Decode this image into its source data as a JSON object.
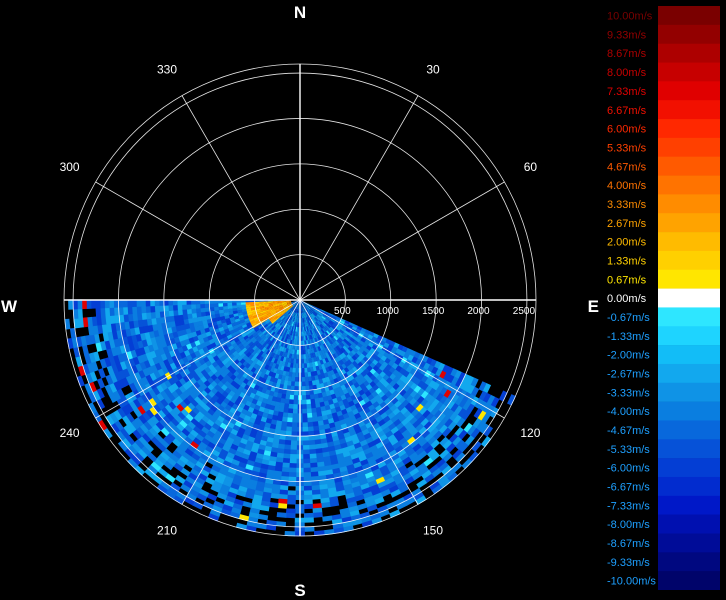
{
  "chart_data": {
    "type": "heatmap",
    "subtype": "polar-ppi-radial-velocity",
    "background": "#000000",
    "grid": true,
    "grid_color": "#ffffff",
    "range_ring_values": [
      500,
      1000,
      1500,
      2000,
      2500
    ],
    "range_tick_labels": [
      "500",
      "1000",
      "1500",
      "2000",
      "2500"
    ],
    "range_max": 2600,
    "compass_labels": {
      "north": "N",
      "east": "E",
      "south": "S",
      "west": "W"
    },
    "bearing_labels": [
      {
        "angle": 30,
        "text": "30"
      },
      {
        "angle": 60,
        "text": "60"
      },
      {
        "angle": 120,
        "text": "120"
      },
      {
        "angle": 150,
        "text": "150"
      },
      {
        "angle": 210,
        "text": "210"
      },
      {
        "angle": 240,
        "text": "240"
      },
      {
        "angle": 300,
        "text": "300"
      },
      {
        "angle": 330,
        "text": "330"
      }
    ],
    "spoke_angles": [
      0,
      30,
      60,
      90,
      120,
      150,
      180,
      210,
      240,
      270,
      300,
      330
    ],
    "data_sector_degrees": [
      114,
      270
    ],
    "regions": [
      {
        "description": "receding flow near radar, west-southwest",
        "azimuth": [
          230,
          268
        ],
        "range": [
          0,
          600
        ],
        "velocity": 2.67
      },
      {
        "description": "approaching flow, main field",
        "azimuth": [
          114,
          270
        ],
        "range": [
          0,
          2600
        ],
        "velocity": -3.33
      }
    ],
    "colorbar": {
      "position": "right",
      "entries": [
        {
          "label": "10.00m/s",
          "color": "#7a0000"
        },
        {
          "label": "9.33m/s",
          "color": "#930000"
        },
        {
          "label": "8.67m/s",
          "color": "#ad0000"
        },
        {
          "label": "8.00m/s",
          "color": "#c70000"
        },
        {
          "label": "7.33m/s",
          "color": "#e00000"
        },
        {
          "label": "6.67m/s",
          "color": "#f21000"
        },
        {
          "label": "6.00m/s",
          "color": "#ff2800"
        },
        {
          "label": "5.33m/s",
          "color": "#ff4000"
        },
        {
          "label": "4.67m/s",
          "color": "#ff5a00"
        },
        {
          "label": "4.00m/s",
          "color": "#ff7300"
        },
        {
          "label": "3.33m/s",
          "color": "#ff8c00"
        },
        {
          "label": "2.67m/s",
          "color": "#ffa300"
        },
        {
          "label": "2.00m/s",
          "color": "#ffbb00"
        },
        {
          "label": "1.33m/s",
          "color": "#ffd000"
        },
        {
          "label": "0.67m/s",
          "color": "#ffe600"
        },
        {
          "label": "0.00m/s",
          "color": "#ffffff"
        },
        {
          "label": "-0.67m/s",
          "color": "#2ee6ff"
        },
        {
          "label": "-1.33m/s",
          "color": "#1ed4ff"
        },
        {
          "label": "-2.00m/s",
          "color": "#12bdf7"
        },
        {
          "label": "-2.67m/s",
          "color": "#12a8ee"
        },
        {
          "label": "-3.33m/s",
          "color": "#0f93e6"
        },
        {
          "label": "-4.00m/s",
          "color": "#0a7ee0"
        },
        {
          "label": "-4.67m/s",
          "color": "#0868dc"
        },
        {
          "label": "-5.33m/s",
          "color": "#0652d8"
        },
        {
          "label": "-6.00m/s",
          "color": "#043ed4"
        },
        {
          "label": "-6.67m/s",
          "color": "#022ccf"
        },
        {
          "label": "-7.33m/s",
          "color": "#0018c8"
        },
        {
          "label": "-8.00m/s",
          "color": "#0010b0"
        },
        {
          "label": "-8.67m/s",
          "color": "#000c98"
        },
        {
          "label": "-9.33m/s",
          "color": "#000880"
        },
        {
          "label": "-10.00m/s",
          "color": "#00046a"
        }
      ]
    }
  }
}
